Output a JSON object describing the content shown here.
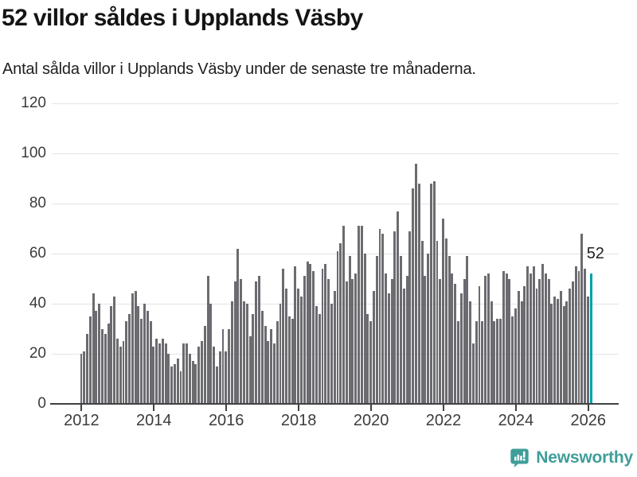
{
  "header": {
    "title": "52 villor såldes i Upplands Väsby",
    "subtitle": "Antal sålda villor i Upplands Väsby under de senaste tre månaderna."
  },
  "chart_data": {
    "type": "bar",
    "title": "52 villor såldes i Upplands Väsby",
    "x_unit": "month",
    "x_start": "2012-01",
    "x_end": "2026-02",
    "x_tick_labels": [
      "2012",
      "2014",
      "2016",
      "2018",
      "2020",
      "2022",
      "2024",
      "2026"
    ],
    "x_tick_years": [
      2012,
      2014,
      2016,
      2018,
      2020,
      2022,
      2024,
      2026
    ],
    "y_ticks": [
      0,
      20,
      40,
      60,
      80,
      100,
      120
    ],
    "ylim": [
      0,
      120
    ],
    "grid": true,
    "legend": "none",
    "bar_color": "#6b6b70",
    "highlight_color": "#00a2a8",
    "highlight_index": 169,
    "annotation": {
      "text": "52",
      "index": 169
    },
    "values": [
      20,
      21,
      28,
      35,
      44,
      37,
      40,
      30,
      28,
      32,
      39,
      43,
      26,
      23,
      25,
      33,
      36,
      44,
      45,
      39,
      34,
      40,
      37,
      33,
      23,
      26,
      24,
      26,
      24,
      20,
      15,
      16,
      18,
      13,
      24,
      24,
      20,
      17,
      16,
      23,
      25,
      31,
      51,
      40,
      23,
      15,
      21,
      30,
      21,
      30,
      41,
      49,
      62,
      50,
      41,
      40,
      27,
      36,
      49,
      51,
      37,
      31,
      25,
      30,
      24,
      33,
      40,
      54,
      46,
      35,
      34,
      55,
      46,
      43,
      51,
      57,
      56,
      53,
      39,
      36,
      54,
      56,
      50,
      40,
      45,
      61,
      64,
      71,
      49,
      59,
      50,
      52,
      71,
      71,
      60,
      36,
      33,
      45,
      59,
      70,
      68,
      52,
      44,
      50,
      69,
      77,
      59,
      46,
      51,
      69,
      86,
      96,
      88,
      65,
      51,
      60,
      88,
      89,
      65,
      50,
      74,
      66,
      59,
      52,
      48,
      33,
      44,
      50,
      59,
      41,
      24,
      33,
      47,
      33,
      51,
      52,
      41,
      33,
      34,
      34,
      53,
      52,
      50,
      35,
      38,
      45,
      41,
      47,
      55,
      52,
      55,
      46,
      50,
      56,
      52,
      50,
      40,
      43,
      42,
      45,
      39,
      41,
      46,
      49,
      55,
      53,
      68,
      54,
      43,
      52
    ]
  },
  "footer": {
    "brand": "Newsworthy",
    "brand_color": "#3f9e99",
    "logo_icon": "newsworthy-speech-bubble-chart-icon"
  }
}
